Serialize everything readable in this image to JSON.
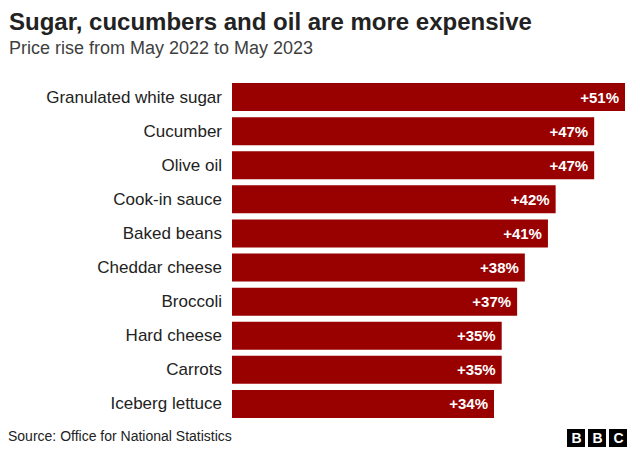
{
  "chart_data": {
    "type": "bar",
    "title": "Sugar, cucumbers and oil are more expensive",
    "subtitle": "Price rise from May 2022 to May 2023",
    "categories": [
      "Granulated white sugar",
      "Cucumber",
      "Olive oil",
      "Cook-in sauce",
      "Baked beans",
      "Cheddar cheese",
      "Broccoli",
      "Hard cheese",
      "Carrots",
      "Iceberg lettuce"
    ],
    "values": [
      51,
      47,
      47,
      42,
      41,
      38,
      37,
      35,
      35,
      34
    ],
    "value_labels": [
      "+51%",
      "+47%",
      "+47%",
      "+42%",
      "+41%",
      "+38%",
      "+37%",
      "+35%",
      "+35%",
      "+34%"
    ],
    "color": "#990000",
    "orientation": "horizontal",
    "data_labels": true,
    "tick_labels": "y",
    "grid": false,
    "source": "Source: Office for National Statistics",
    "logo": "BBC"
  }
}
